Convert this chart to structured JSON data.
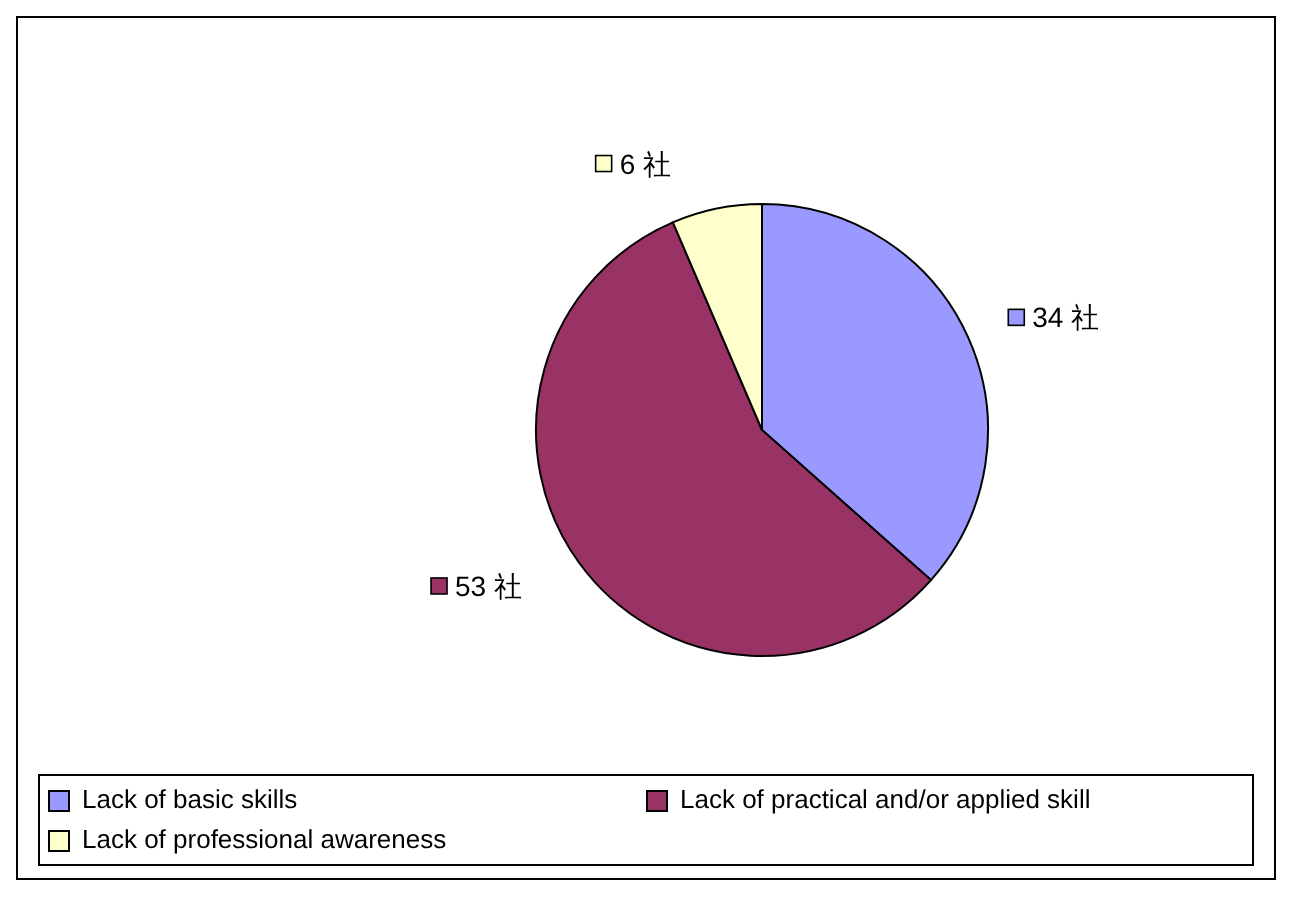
{
  "chart_data": {
    "type": "pie",
    "categories": [
      "Lack of basic skills",
      "Lack of practical and/or applied skill",
      "Lack of professional awareness"
    ],
    "values": [
      34,
      53,
      6
    ],
    "colors": [
      "#9999ff",
      "#993366",
      "#ffffcc"
    ],
    "value_labels": [
      "34 社",
      "53 社",
      "6 社"
    ],
    "legend": "bottom"
  }
}
